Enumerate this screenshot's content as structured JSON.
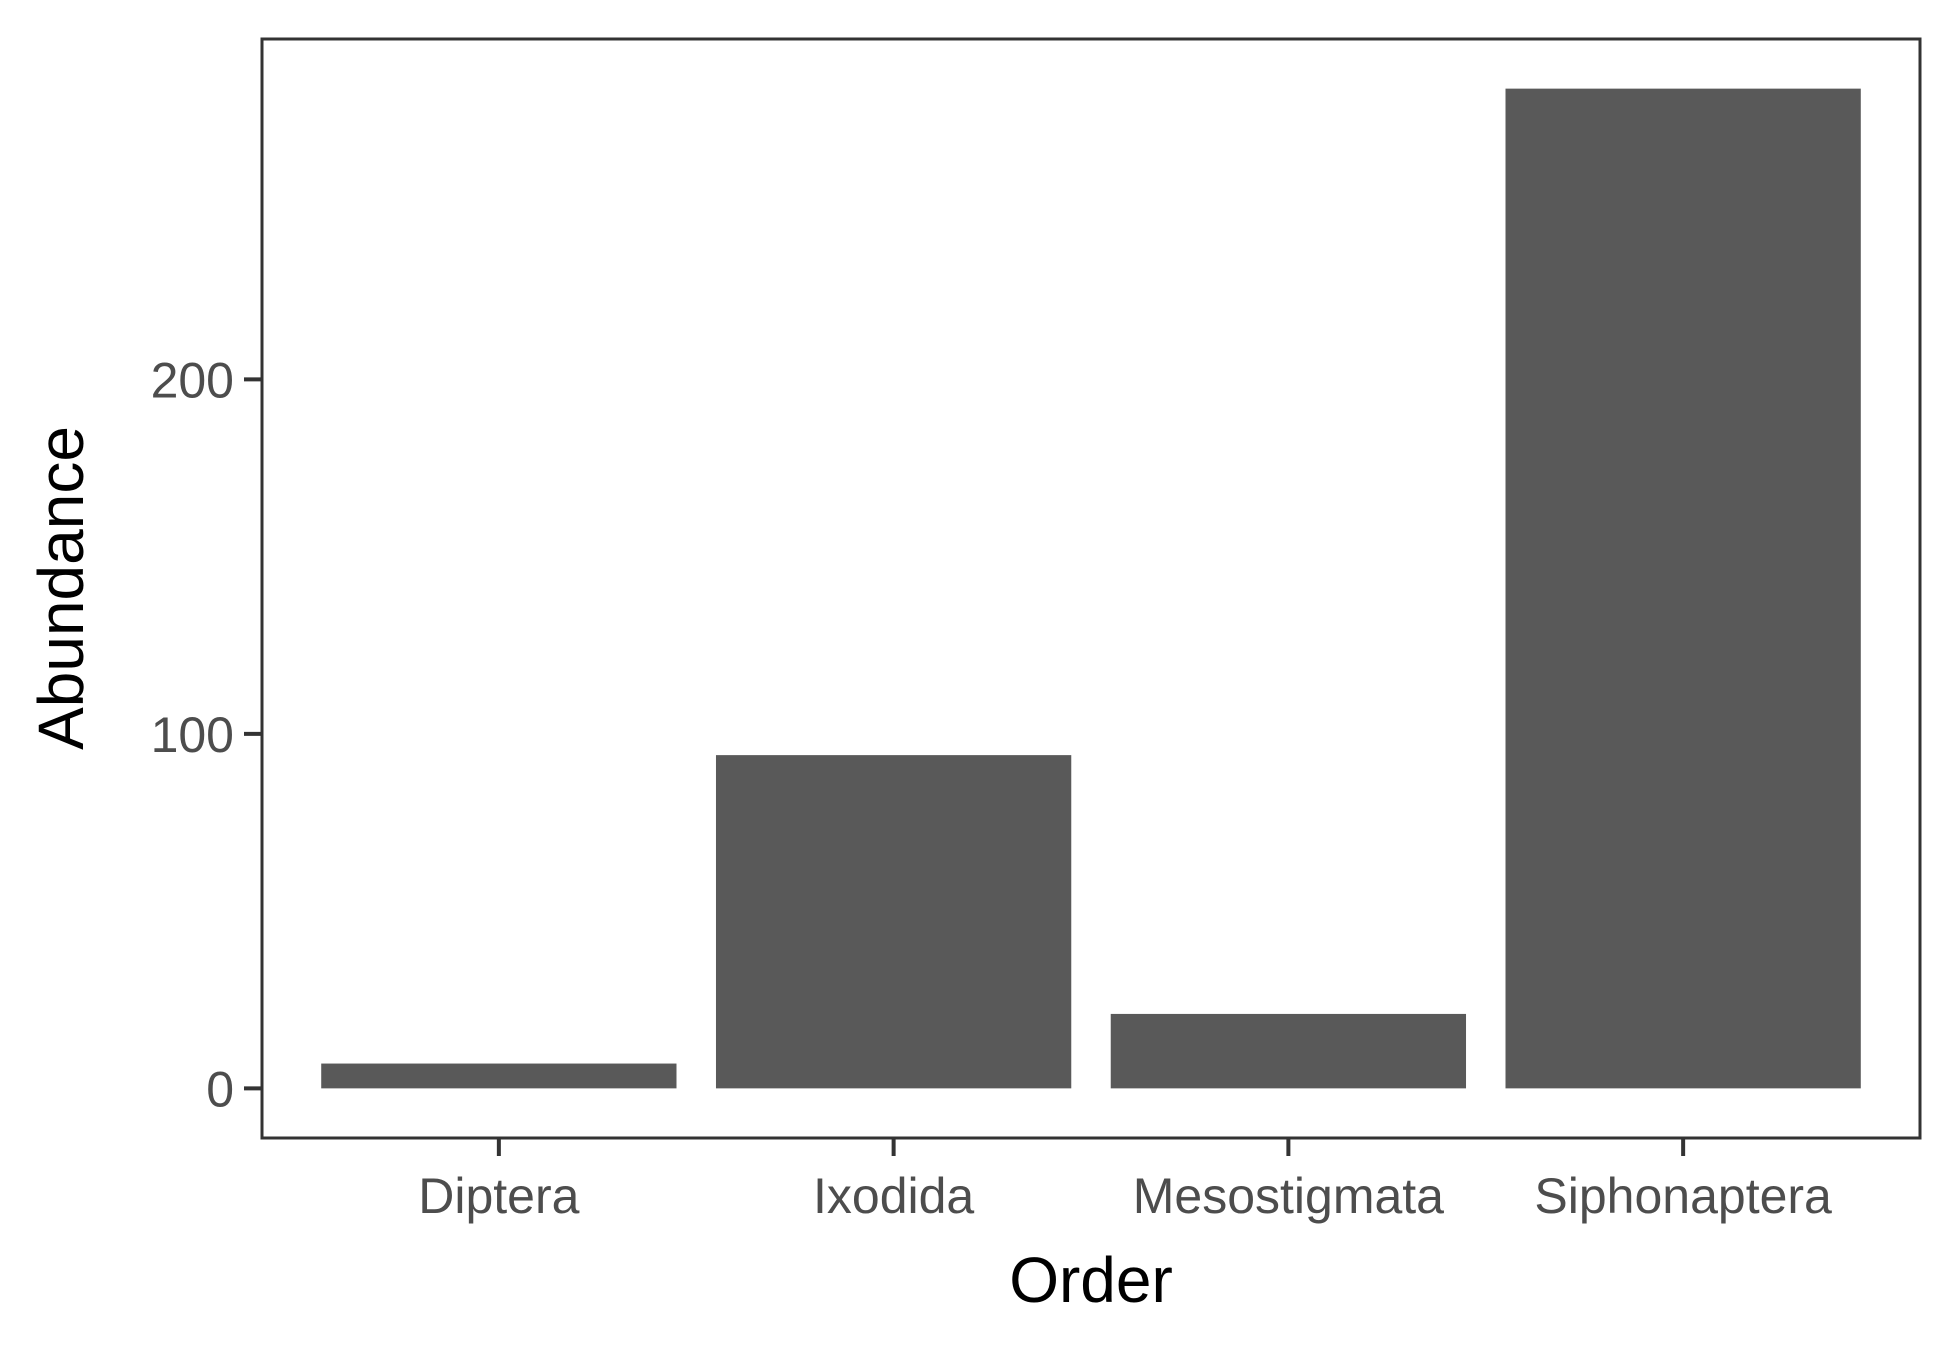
{
  "chart_data": {
    "type": "bar",
    "title": "",
    "xlabel": "Order",
    "ylabel": "Abundance",
    "categories": [
      "Diptera",
      "Ixodida",
      "Mesostigmata",
      "Siphonaptera"
    ],
    "values": [
      7,
      94,
      21,
      282
    ],
    "yticks": [
      0,
      100,
      200
    ],
    "ytick_labels": [
      "0",
      "100",
      "200"
    ],
    "ylim": [
      -14,
      296
    ],
    "grid": false,
    "legend": "none",
    "colors": {
      "bar": "#595959",
      "panel_border": "#333333",
      "tick_label": "#4d4d4d",
      "axis_title": "#000000"
    }
  }
}
